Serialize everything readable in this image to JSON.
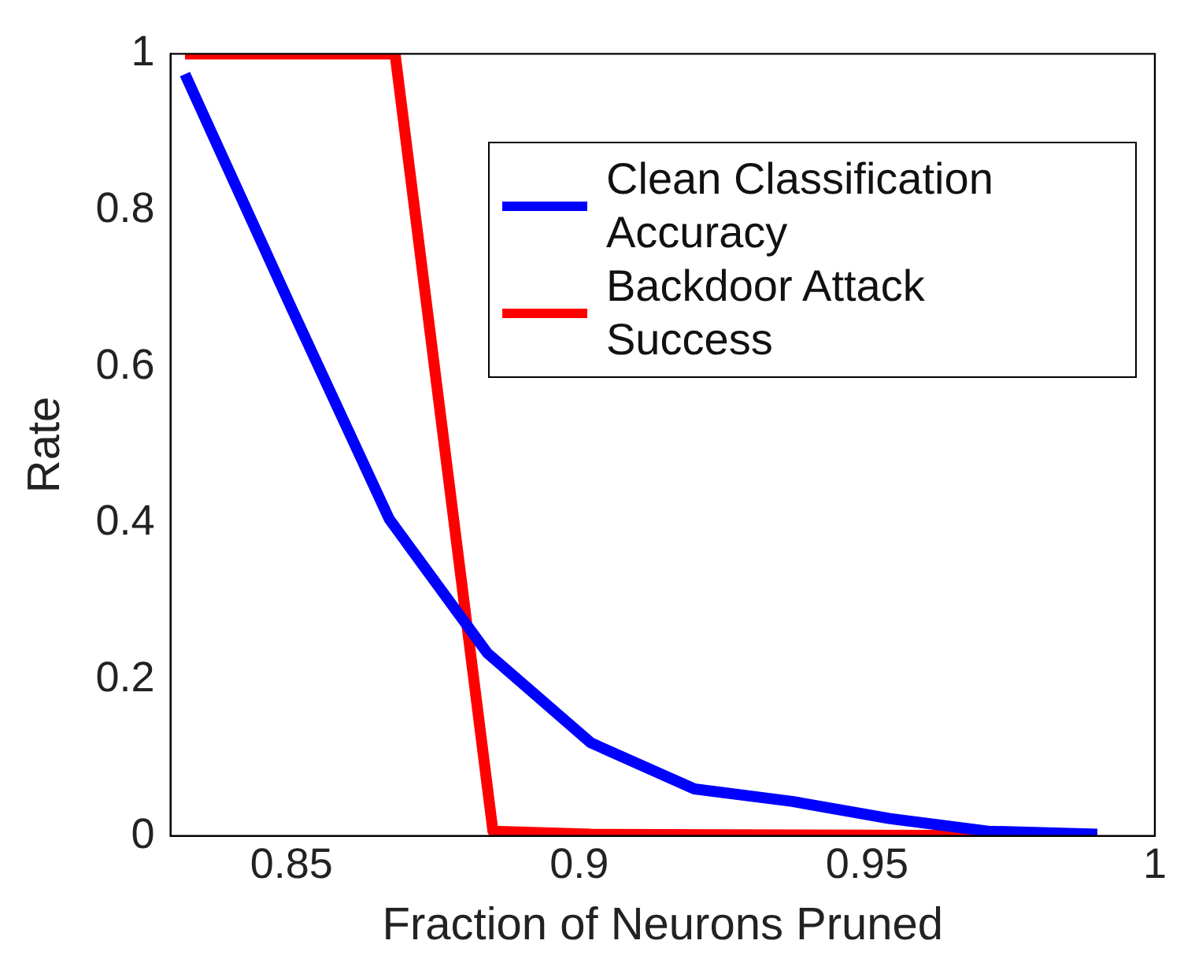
{
  "chart_data": {
    "type": "line",
    "xlabel": "Fraction of Neurons Pruned",
    "ylabel": "Rate",
    "xlim": [
      0.829,
      1
    ],
    "ylim": [
      0,
      1
    ],
    "xticks": [
      0.85,
      0.9,
      0.95,
      1
    ],
    "yticks": [
      0,
      0.2,
      0.4,
      0.6,
      0.8,
      1
    ],
    "grid": false,
    "legend": "top right",
    "marker": "none",
    "line_style": "solid",
    "series": [
      {
        "name": "Clean Classification Accuracy",
        "color": "#0000ff",
        "x": [
          0.8315,
          0.85,
          0.867,
          0.884,
          0.902,
          0.92,
          0.937,
          0.954,
          0.971,
          0.99
        ],
        "values": [
          0.974,
          0.675,
          0.405,
          0.234,
          0.119,
          0.06,
          0.044,
          0.022,
          0.006,
          0.002
        ]
      },
      {
        "name": "Backdoor Attack Success",
        "color": "#ff0000",
        "x": [
          0.8315,
          0.868,
          0.885,
          0.902,
          0.99
        ],
        "values": [
          1,
          1,
          0.006,
          0.002,
          0
        ]
      }
    ]
  }
}
